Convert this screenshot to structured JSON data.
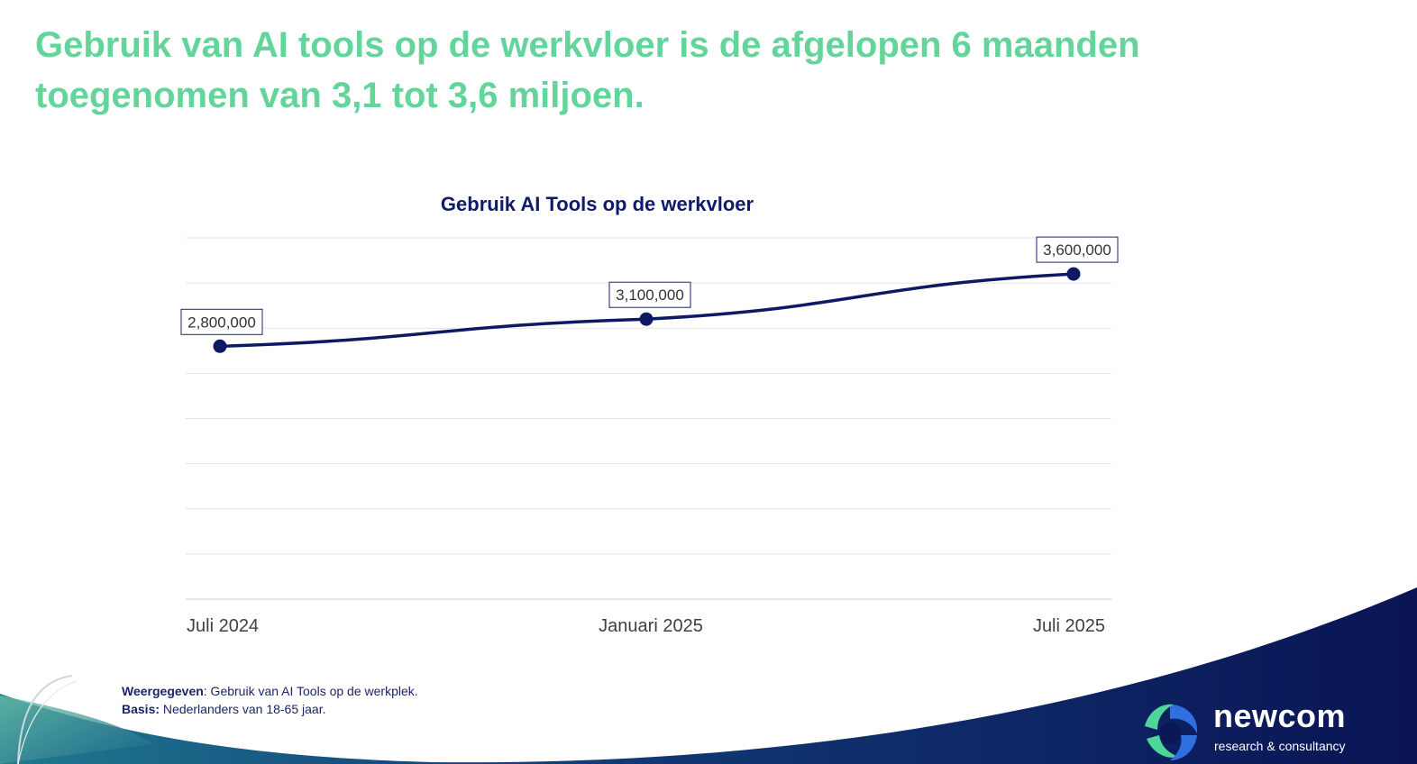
{
  "headline": {
    "line1": "Gebruik van AI tools op de werkvloer is de afgelopen 6 maanden",
    "line2": "toegenomen van 3,1 tot 3,6 miljoen."
  },
  "chart_data": {
    "type": "line",
    "title": "Gebruik AI Tools op de werkvloer",
    "categories": [
      "Juli 2024",
      "Januari 2025",
      "Juli 2025"
    ],
    "values": [
      2800000,
      3100000,
      3600000
    ],
    "data_labels": [
      "2,800,000",
      "3,100,000",
      "3,600,000"
    ],
    "ylim": [
      0,
      4000000
    ],
    "y_gridlines": 8,
    "ytick_labels_shown": false,
    "grid": true,
    "line_color": "#0d1a63",
    "marker_color": "#0d1a63"
  },
  "footnote": {
    "shown_label": "Weergegeven",
    "shown_text": ": Gebruik van AI Tools op de werkplek.",
    "basis_label": "Basis:",
    "basis_text": " Nederlanders van 18-65 jaar."
  },
  "logo": {
    "name": "newcom",
    "tagline": "research & consultancy"
  },
  "colors": {
    "headline": "#63d59b",
    "chart_title": "#0f1a6b",
    "wave_dark": "#0b1757",
    "wave_teal": "#1c6e8c",
    "logo_green": "#4ed59a",
    "logo_blue": "#2f6fe0"
  }
}
